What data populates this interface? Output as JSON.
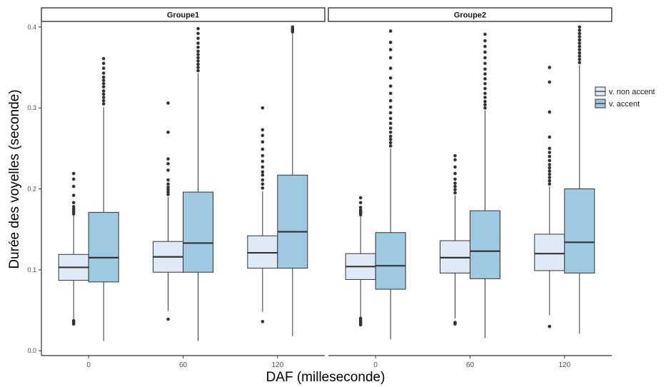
{
  "chart_data": {
    "type": "boxplot",
    "xlabel": "DAF (milleseconde)",
    "ylabel": "Durée des voyelles (seconde)",
    "ylim": [
      -0.006,
      0.406
    ],
    "yticks": [
      0.0,
      0.1,
      0.2,
      0.3,
      0.4
    ],
    "ytick_labels": [
      "0.0",
      "0.1",
      "0.2",
      "0.3",
      "0.4"
    ],
    "categories": [
      "0",
      "60",
      "120"
    ],
    "grid": false,
    "legend_position": "right",
    "facets": [
      {
        "label": "Groupe1",
        "series": [
          {
            "name": "v. non accent",
            "color": "#deebf7",
            "boxes": [
              {
                "category": "0",
                "min": 0.038,
                "q1": 0.087,
                "median": 0.103,
                "q3": 0.119,
                "max": 0.167,
                "outliers": [
                  0.033,
                  0.035,
                  0.037,
                  0.169,
                  0.172,
                  0.175,
                  0.178,
                  0.183,
                  0.192,
                  0.203,
                  0.212,
                  0.219
                ]
              },
              {
                "category": "60",
                "min": 0.049,
                "q1": 0.097,
                "median": 0.116,
                "q3": 0.135,
                "max": 0.19,
                "outliers": [
                  0.039,
                  0.193,
                  0.196,
                  0.199,
                  0.202,
                  0.206,
                  0.211,
                  0.223,
                  0.231,
                  0.237,
                  0.27,
                  0.306
                ]
              },
              {
                "category": "120",
                "min": 0.048,
                "q1": 0.102,
                "median": 0.121,
                "q3": 0.142,
                "max": 0.197,
                "outliers": [
                  0.036,
                  0.201,
                  0.206,
                  0.211,
                  0.217,
                  0.221,
                  0.227,
                  0.234,
                  0.241,
                  0.249,
                  0.258,
                  0.266,
                  0.273,
                  0.3
                ]
              }
            ]
          },
          {
            "name": "v. accent",
            "color": "#9ecae1",
            "boxes": [
              {
                "category": "0",
                "min": 0.012,
                "q1": 0.085,
                "median": 0.115,
                "q3": 0.171,
                "max": 0.301,
                "outliers": [
                  0.305,
                  0.309,
                  0.313,
                  0.317,
                  0.321,
                  0.326,
                  0.33,
                  0.334,
                  0.338,
                  0.343,
                  0.349,
                  0.355,
                  0.361
                ]
              },
              {
                "category": "60",
                "min": 0.012,
                "q1": 0.097,
                "median": 0.133,
                "q3": 0.196,
                "max": 0.343,
                "outliers": [
                  0.346,
                  0.35,
                  0.354,
                  0.358,
                  0.362,
                  0.366,
                  0.37,
                  0.375,
                  0.38,
                  0.386,
                  0.392,
                  0.398
                ]
              },
              {
                "category": "120",
                "min": 0.018,
                "q1": 0.102,
                "median": 0.147,
                "q3": 0.217,
                "max": 0.392,
                "outliers": [
                  0.394,
                  0.396,
                  0.398,
                  0.4
                ]
              }
            ]
          }
        ]
      },
      {
        "label": "Groupe2",
        "series": [
          {
            "name": "v. non accent",
            "color": "#deebf7",
            "boxes": [
              {
                "category": "0",
                "min": 0.042,
                "q1": 0.088,
                "median": 0.104,
                "q3": 0.12,
                "max": 0.166,
                "outliers": [
                  0.032,
                  0.034,
                  0.036,
                  0.038,
                  0.04,
                  0.168,
                  0.17,
                  0.172,
                  0.174,
                  0.177,
                  0.183,
                  0.189
                ]
              },
              {
                "category": "60",
                "min": 0.04,
                "q1": 0.096,
                "median": 0.115,
                "q3": 0.136,
                "max": 0.192,
                "outliers": [
                  0.033,
                  0.035,
                  0.195,
                  0.199,
                  0.203,
                  0.207,
                  0.212,
                  0.219,
                  0.227,
                  0.236,
                  0.241
                ]
              },
              {
                "category": "120",
                "min": 0.044,
                "q1": 0.099,
                "median": 0.12,
                "q3": 0.144,
                "max": 0.203,
                "outliers": [
                  0.03,
                  0.206,
                  0.21,
                  0.214,
                  0.218,
                  0.222,
                  0.226,
                  0.23,
                  0.235,
                  0.24,
                  0.245,
                  0.25,
                  0.264,
                  0.295,
                  0.332,
                  0.35
                ]
              }
            ]
          },
          {
            "name": "v. accent",
            "color": "#9ecae1",
            "boxes": [
              {
                "category": "0",
                "min": 0.014,
                "q1": 0.076,
                "median": 0.105,
                "q3": 0.146,
                "max": 0.25,
                "outliers": [
                  0.253,
                  0.257,
                  0.261,
                  0.265,
                  0.27,
                  0.275,
                  0.281,
                  0.287,
                  0.294,
                  0.301,
                  0.309,
                  0.318,
                  0.327,
                  0.337,
                  0.349,
                  0.362,
                  0.372,
                  0.381,
                  0.395
                ]
              },
              {
                "category": "60",
                "min": 0.016,
                "q1": 0.089,
                "median": 0.123,
                "q3": 0.173,
                "max": 0.297,
                "outliers": [
                  0.3,
                  0.304,
                  0.308,
                  0.313,
                  0.318,
                  0.324,
                  0.33,
                  0.336,
                  0.342,
                  0.348,
                  0.355,
                  0.362,
                  0.369,
                  0.376,
                  0.383,
                  0.391
                ]
              },
              {
                "category": "120",
                "min": 0.021,
                "q1": 0.096,
                "median": 0.134,
                "q3": 0.2,
                "max": 0.353,
                "outliers": [
                  0.356,
                  0.36,
                  0.364,
                  0.368,
                  0.372,
                  0.376,
                  0.38,
                  0.384,
                  0.388,
                  0.392,
                  0.396,
                  0.4
                ]
              }
            ]
          }
        ]
      }
    ]
  }
}
